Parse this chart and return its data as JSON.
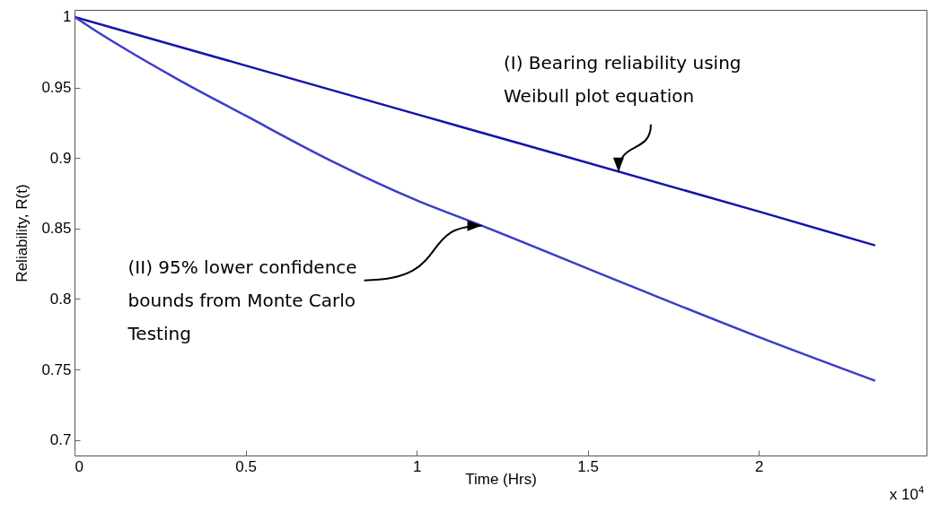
{
  "chart_data": {
    "type": "line",
    "xlabel": "Time (Hrs)",
    "ylabel": "Reliability, R(t)",
    "xlim": [
      0,
      2.49
    ],
    "ylim": [
      0.689,
      1.005
    ],
    "xticks": [
      0,
      0.5,
      1,
      1.5,
      2
    ],
    "yticks": [
      0.7,
      0.75,
      0.8,
      0.85,
      0.9,
      0.95,
      1
    ],
    "grid": false,
    "line_style": "solid",
    "series": [
      {
        "color": "#1414a8",
        "x": [
          0,
          1,
          2,
          2.34
        ],
        "values": [
          1,
          0.931,
          0.862,
          0.838
        ]
      },
      {
        "color": "#3c3cc8",
        "x": [
          0,
          0.05,
          0.15,
          0.3,
          0.5,
          0.75,
          1,
          1.19,
          1.617,
          2,
          2.34
        ],
        "values": [
          1,
          0.992,
          0.977,
          0.956,
          0.93,
          0.898,
          0.87,
          0.852,
          0.81,
          0.773,
          0.742
        ]
      }
    ],
    "annotations": [
      {
        "text": "(I) Bearing reliability using\nWeibull plot equation",
        "x": 1.59,
        "y": 0.89
      },
      {
        "text": "(II) 95% lower confidence\nbounds from Monte Carlo\nTesting",
        "x": 1.19,
        "y": 0.852
      },
      "x 10$^{4}$"
    ]
  }
}
